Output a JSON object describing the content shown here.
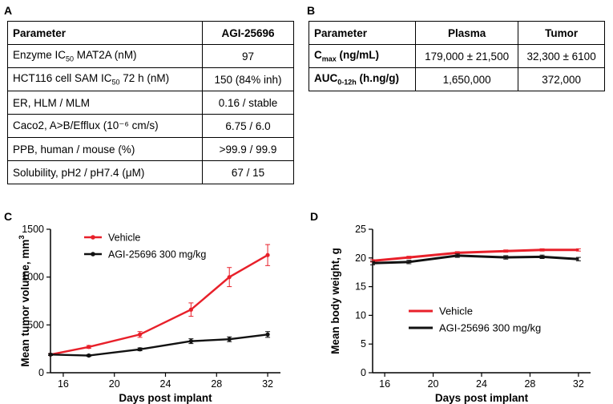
{
  "panels": {
    "A": "A",
    "B": "B",
    "C": "C",
    "D": "D"
  },
  "table_a": {
    "headers": [
      "Parameter",
      "AGI-25696"
    ],
    "rows": [
      {
        "label": "Enzyme IC",
        "sub": "50",
        "suffix": " MAT2A (nM)",
        "value": "97"
      },
      {
        "label": "HCT116 cell SAM IC",
        "sub": "50",
        "suffix": " 72 h (nM)",
        "value": "150 (84% inh)"
      },
      {
        "label": "ER, HLM / MLM",
        "sub": "",
        "suffix": "",
        "value": "0.16 / stable"
      },
      {
        "label": "Caco2, A>B/Efflux (10⁻⁶ cm/s)",
        "sub": "",
        "suffix": "",
        "value": "6.75 / 6.0"
      },
      {
        "label": "PPB, human / mouse (%)",
        "sub": "",
        "suffix": "",
        "value": ">99.9 / 99.9"
      },
      {
        "label": "Solubility, pH2 / pH7.4 (μM)",
        "sub": "",
        "suffix": "",
        "value": "67 / 15"
      }
    ]
  },
  "table_b": {
    "headers": [
      "Parameter",
      "Plasma",
      "Tumor"
    ],
    "rows": [
      {
        "label": "C",
        "sub": "max",
        "suffix": " (ng/mL)",
        "values": [
          "179,000 ± 21,500",
          "32,300 ± 6100"
        ]
      },
      {
        "label": "AUC",
        "sub": "0-12h",
        "suffix": " (h.ng/g)",
        "values": [
          "1,650,000",
          "372,000"
        ]
      }
    ]
  },
  "chart_data": [
    {
      "type": "line",
      "panel": "C",
      "xlabel": "Days post implant",
      "ylabel": "Mean tumor volume, mm",
      "ylabel_sup": "3",
      "xlim": [
        15,
        33
      ],
      "ylim": [
        0,
        1500
      ],
      "xticks": [
        16,
        20,
        24,
        28,
        32
      ],
      "yticks": [
        0,
        500,
        1000,
        1500
      ],
      "legend_position": "top-left",
      "series": [
        {
          "name": "Vehicle",
          "color": "#e8202a",
          "x": [
            15,
            18,
            22,
            26,
            29,
            32
          ],
          "y": [
            190,
            270,
            400,
            660,
            1000,
            1230
          ],
          "err": [
            10,
            15,
            30,
            70,
            100,
            110
          ]
        },
        {
          "name": "AGI-25696 300 mg/kg",
          "color": "#111111",
          "x": [
            15,
            18,
            22,
            26,
            29,
            32
          ],
          "y": [
            190,
            180,
            245,
            330,
            350,
            400
          ],
          "err": [
            10,
            10,
            15,
            25,
            25,
            30
          ]
        }
      ]
    },
    {
      "type": "line",
      "panel": "D",
      "xlabel": "Days post implant",
      "ylabel": "Mean body weight, g",
      "xlim": [
        15,
        33
      ],
      "ylim": [
        0,
        25
      ],
      "xticks": [
        16,
        20,
        24,
        28,
        32
      ],
      "yticks": [
        0,
        5,
        10,
        15,
        20,
        25
      ],
      "legend_position": "center-left",
      "series": [
        {
          "name": "Vehicle",
          "color": "#e8202a",
          "x": [
            15,
            18,
            22,
            26,
            29,
            32
          ],
          "y": [
            19.5,
            20.1,
            20.9,
            21.2,
            21.4,
            21.4
          ],
          "err": [
            0.2,
            0.2,
            0.2,
            0.2,
            0.2,
            0.2
          ]
        },
        {
          "name": "AGI-25696 300 mg/kg",
          "color": "#111111",
          "x": [
            15,
            18,
            22,
            26,
            29,
            32
          ],
          "y": [
            19.1,
            19.3,
            20.4,
            20.1,
            20.2,
            19.8
          ],
          "err": [
            0.3,
            0.3,
            0.3,
            0.3,
            0.3,
            0.3
          ]
        }
      ]
    }
  ]
}
